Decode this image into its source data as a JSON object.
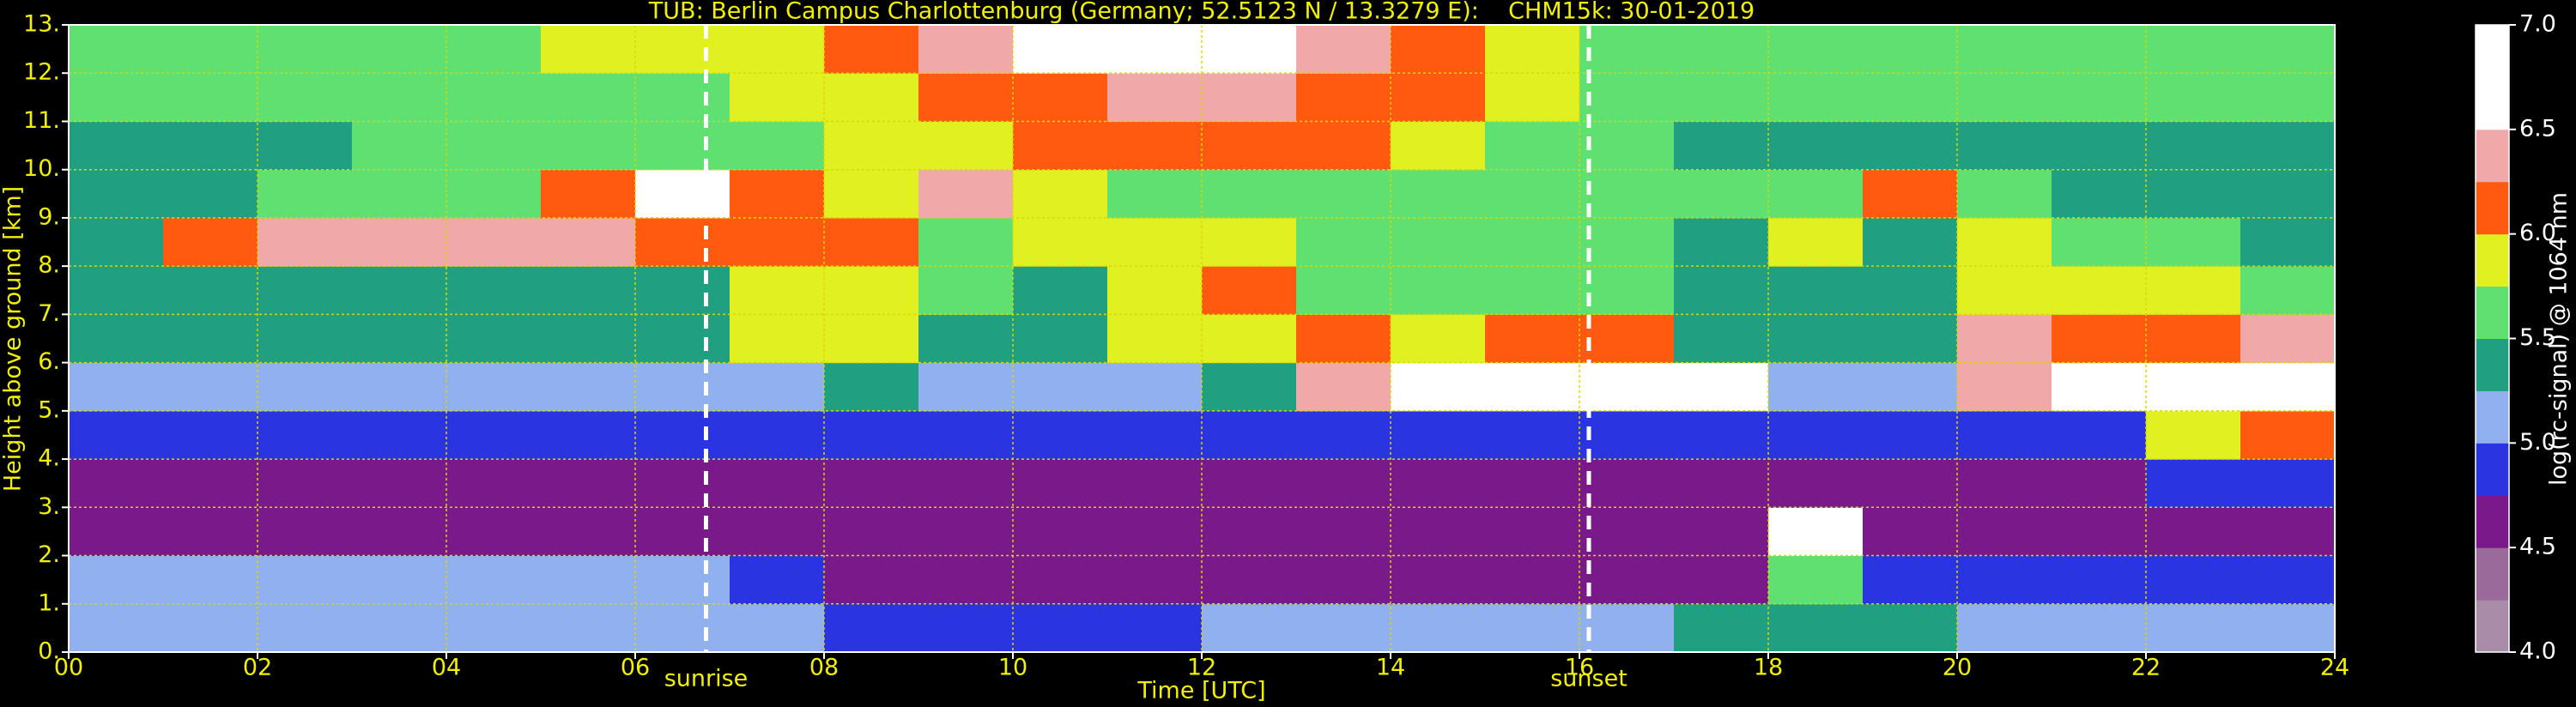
{
  "chart_data": {
    "type": "heatmap",
    "title": "TUB: Berlin Campus Charlottenburg (Germany; 52.5123 N / 13.3279 E):    CHM15k: 30-01-2019",
    "x_label": "Time [UTC]",
    "y_label": "Height above ground [km]",
    "colorbar_label": "log(rc-signal) @ 1064 nm",
    "xbins": [
      0,
      1,
      2,
      3,
      4,
      5,
      6,
      7,
      8,
      9,
      10,
      11,
      12,
      13,
      14,
      15,
      16,
      17,
      18,
      19,
      20,
      21,
      22,
      23,
      24
    ],
    "ybins": [
      0,
      1,
      2,
      3,
      4,
      5,
      6,
      7,
      8,
      9,
      10,
      11,
      12,
      13
    ],
    "z": [
      [
        5.2,
        5.2,
        5.2,
        5.2,
        5.2,
        5.2,
        5.1,
        5.1,
        4.9,
        4.9,
        4.9,
        4.9,
        5.0,
        5.0,
        5.1,
        5.2,
        5.2,
        5.3,
        5.3,
        5.3,
        5.2,
        5.2,
        5.2,
        5.1
      ],
      [
        5.0,
        5.0,
        5.0,
        5.0,
        5.0,
        5.0,
        5.0,
        4.9,
        4.7,
        4.6,
        4.6,
        4.6,
        4.6,
        4.6,
        4.7,
        4.7,
        4.7,
        4.7,
        5.6,
        4.8,
        4.8,
        4.8,
        4.9,
        4.9
      ],
      [
        4.5,
        4.5,
        4.5,
        4.5,
        4.5,
        4.5,
        4.5,
        4.5,
        4.5,
        4.5,
        4.5,
        4.5,
        4.5,
        4.5,
        4.5,
        4.6,
        4.6,
        4.5,
        6.6,
        4.6,
        4.6,
        4.6,
        4.6,
        4.6
      ],
      [
        4.7,
        4.7,
        4.7,
        4.7,
        4.7,
        4.7,
        4.7,
        4.7,
        4.7,
        4.7,
        4.7,
        4.7,
        4.7,
        4.7,
        4.7,
        4.7,
        4.7,
        4.7,
        4.7,
        4.7,
        4.7,
        4.7,
        4.8,
        4.8
      ],
      [
        4.9,
        4.9,
        4.9,
        4.9,
        4.9,
        4.9,
        4.9,
        4.9,
        4.9,
        4.9,
        4.9,
        4.9,
        4.9,
        4.9,
        4.9,
        4.9,
        4.9,
        4.9,
        4.8,
        4.9,
        4.9,
        4.9,
        5.9,
        6.1
      ],
      [
        5.2,
        5.2,
        5.2,
        5.2,
        5.2,
        5.2,
        5.2,
        5.2,
        5.3,
        5.2,
        5.2,
        5.2,
        5.3,
        6.3,
        6.6,
        6.5,
        6.6,
        6.6,
        5.2,
        5.2,
        6.4,
        6.6,
        6.6,
        6.5
      ],
      [
        5.3,
        5.3,
        5.3,
        5.3,
        5.3,
        5.3,
        5.3,
        5.9,
        5.8,
        5.3,
        5.3,
        5.8,
        5.9,
        6.2,
        5.9,
        6.1,
        6.2,
        5.4,
        5.4,
        5.4,
        6.3,
        6.2,
        6.2,
        6.3
      ],
      [
        5.3,
        5.3,
        5.3,
        5.3,
        5.3,
        5.3,
        5.3,
        5.9,
        5.8,
        5.5,
        5.4,
        5.9,
        6.0,
        5.6,
        5.5,
        5.6,
        5.6,
        5.4,
        5.4,
        5.4,
        5.9,
        5.8,
        5.9,
        5.6
      ],
      [
        5.3,
        6.1,
        6.3,
        6.4,
        6.3,
        6.3,
        6.0,
        6.0,
        6.0,
        5.7,
        5.8,
        5.9,
        5.9,
        5.6,
        5.5,
        5.5,
        5.5,
        5.3,
        5.8,
        5.3,
        5.8,
        5.5,
        5.5,
        5.4
      ],
      [
        5.4,
        5.4,
        5.5,
        5.6,
        5.7,
        6.2,
        6.6,
        6.1,
        5.9,
        6.4,
        5.8,
        5.7,
        5.6,
        5.6,
        5.6,
        5.6,
        5.5,
        5.5,
        5.7,
        6.1,
        5.5,
        5.4,
        5.4,
        5.4
      ],
      [
        5.4,
        5.4,
        5.4,
        5.5,
        5.5,
        5.6,
        5.6,
        5.7,
        5.8,
        5.9,
        6.0,
        6.0,
        6.0,
        6.0,
        5.9,
        5.7,
        5.5,
        5.4,
        5.4,
        5.4,
        5.4,
        5.4,
        5.4,
        5.4
      ],
      [
        5.5,
        5.5,
        5.5,
        5.5,
        5.6,
        5.7,
        5.7,
        5.8,
        5.9,
        6.0,
        6.2,
        6.3,
        6.3,
        6.2,
        6.0,
        5.8,
        5.6,
        5.5,
        5.5,
        5.5,
        5.5,
        5.5,
        5.5,
        5.5
      ],
      [
        5.5,
        5.5,
        5.5,
        5.6,
        5.7,
        5.8,
        5.8,
        5.9,
        6.1,
        6.3,
        6.6,
        6.6,
        6.5,
        6.3,
        6.1,
        5.9,
        5.7,
        5.5,
        5.5,
        5.5,
        5.5,
        5.5,
        5.5,
        5.5
      ]
    ],
    "xlim": [
      0,
      24
    ],
    "xticks": [
      {
        "value": 0,
        "label": "00"
      },
      {
        "value": 2,
        "label": "02"
      },
      {
        "value": 4,
        "label": "04"
      },
      {
        "value": 6,
        "label": "06"
      },
      {
        "value": 8,
        "label": "08"
      },
      10,
      12,
      14,
      16,
      18,
      20,
      22,
      24
    ],
    "ylim": [
      0,
      13
    ],
    "yticks": [
      {
        "value": 0,
        "label": "0."
      },
      {
        "value": 1,
        "label": "1."
      },
      {
        "value": 2,
        "label": "2."
      },
      {
        "value": 3,
        "label": "3."
      },
      {
        "value": 4,
        "label": "4."
      },
      {
        "value": 5,
        "label": "5."
      },
      {
        "value": 6,
        "label": "6."
      },
      {
        "value": 7,
        "label": "7."
      },
      {
        "value": 8,
        "label": "8."
      },
      {
        "value": 9,
        "label": "9."
      },
      {
        "value": 10,
        "label": "10."
      },
      {
        "value": 11,
        "label": "11."
      },
      {
        "value": 12,
        "label": "12."
      },
      {
        "value": 13,
        "label": "13."
      }
    ],
    "clim": [
      4,
      7
    ],
    "cticks": [
      {
        "value": 4,
        "label": "4.0"
      },
      {
        "value": 4.5,
        "label": "4.5"
      },
      {
        "value": 5,
        "label": "5.0"
      },
      {
        "value": 5.5,
        "label": "5.5"
      },
      {
        "value": 6,
        "label": "6.0"
      },
      {
        "value": 6.5,
        "label": "6.5"
      },
      {
        "value": 7,
        "label": "7.0"
      }
    ],
    "colorscale": [
      "#a88ca8",
      "#9a6a9a",
      "#7a1a8a",
      "#2a34e0",
      "#90b0f0",
      "#20a080",
      "#60e070",
      "#e0f020",
      "#ff5a10",
      "#f0a8a8",
      "#ffffff",
      "#ffffff"
    ],
    "grid": true,
    "annotations": [
      {
        "x": 6.75,
        "label": "sunrise"
      },
      {
        "x": 16.1,
        "label": "sunset"
      }
    ]
  }
}
